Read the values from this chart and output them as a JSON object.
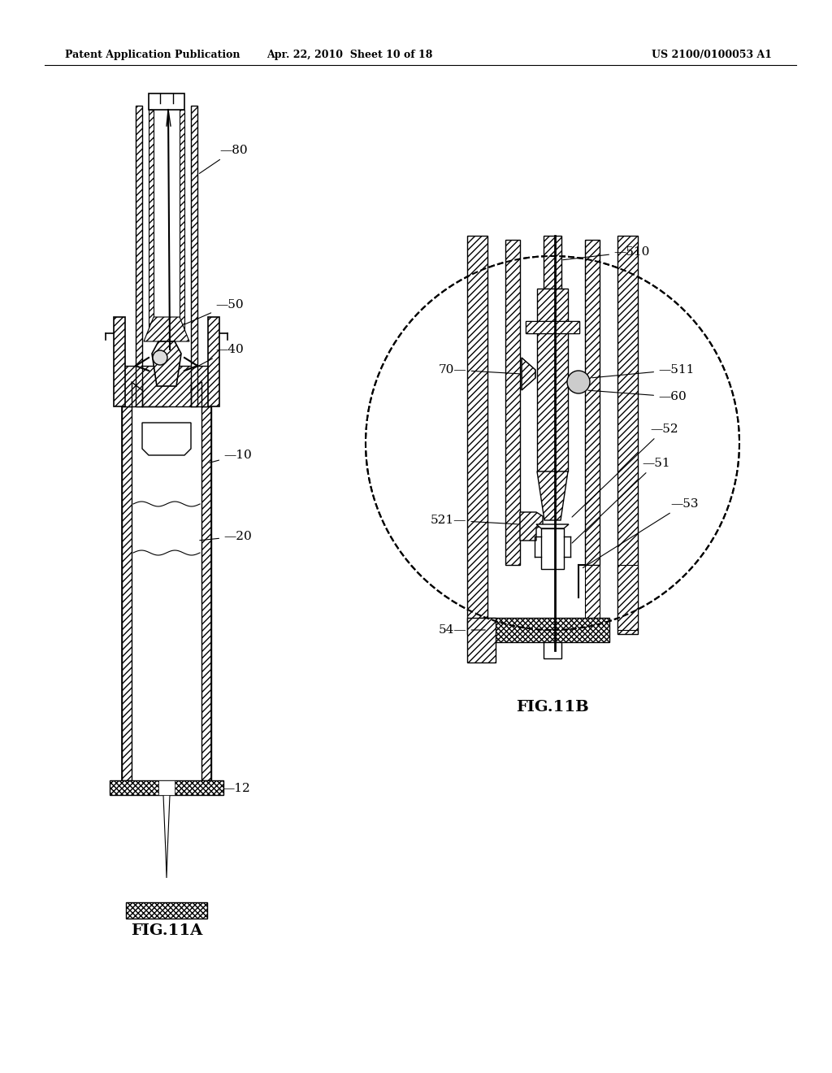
{
  "background_color": "#ffffff",
  "header_left": "Patent Application Publication",
  "header_center": "Apr. 22, 2010  Sheet 10 of 18",
  "header_right": "US 2100/0100053 A1",
  "fig11a_label": "FIG.11A",
  "fig11b_label": "FIG.11B",
  "page_width": 10.24,
  "page_height": 13.2
}
